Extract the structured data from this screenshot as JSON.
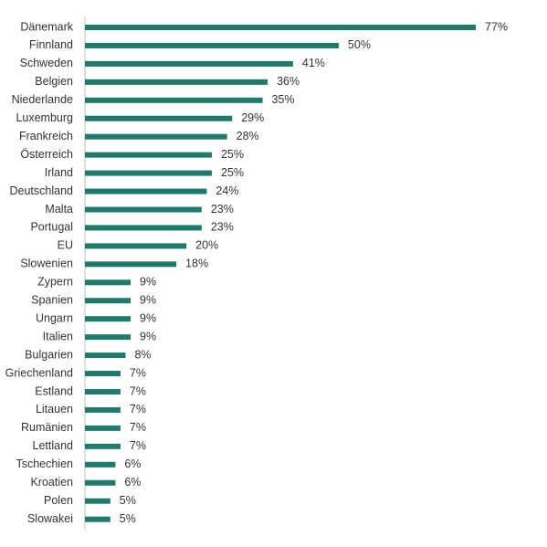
{
  "chart_data": {
    "type": "bar",
    "orientation": "horizontal",
    "color": "#1f7a6c",
    "categories": [
      "Dänemark",
      "Finnland",
      "Schweden",
      "Belgien",
      "Niederlande",
      "Luxemburg",
      "Frankreich",
      "Österreich",
      "Irland",
      "Deutschland",
      "Malta",
      "Portugal",
      "EU",
      "Slowenien",
      "Zypern",
      "Spanien",
      "Ungarn",
      "Italien",
      "Bulgarien",
      "Griechenland",
      "Estland",
      "Litauen",
      "Rumänien",
      "Lettland",
      "Tschechien",
      "Kroatien",
      "Polen",
      "Slowakei"
    ],
    "values": [
      77,
      50,
      41,
      36,
      35,
      29,
      28,
      25,
      25,
      24,
      23,
      23,
      20,
      18,
      9,
      9,
      9,
      9,
      8,
      7,
      7,
      7,
      7,
      7,
      6,
      6,
      5,
      5
    ],
    "value_labels": [
      "77%",
      "50%",
      "41%",
      "36%",
      "35%",
      "29%",
      "28%",
      "25%",
      "25%",
      "24%",
      "23%",
      "23%",
      "20%",
      "18%",
      "9%",
      "9%",
      "9%",
      "9%",
      "8%",
      "7%",
      "7%",
      "7%",
      "7%",
      "7%",
      "6%",
      "6%",
      "5%",
      "5%"
    ]
  }
}
